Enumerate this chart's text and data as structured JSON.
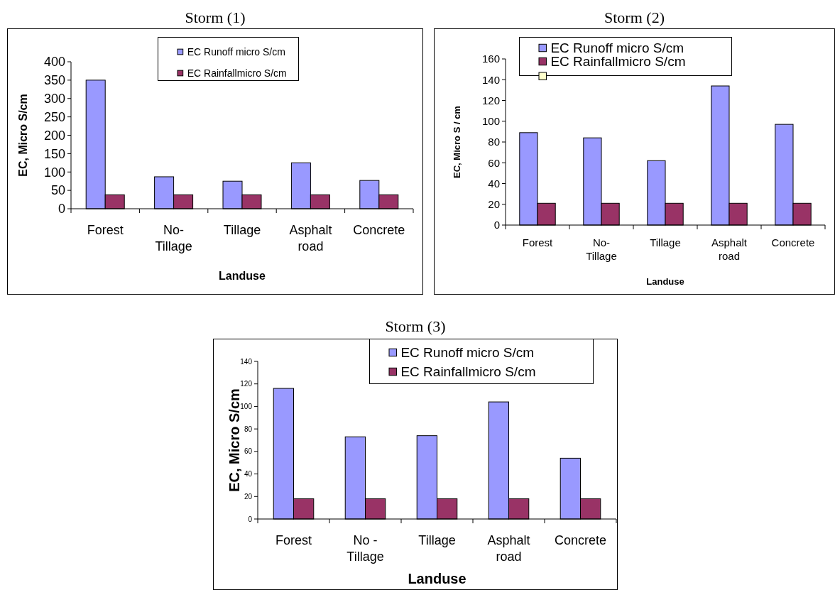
{
  "chart_data": [
    {
      "type": "bar",
      "title": "Storm (1)",
      "xlabel": "Landuse",
      "ylabel": "EC, Micro S/cm",
      "categories": [
        "Forest",
        "No-Tillage",
        "Tillage",
        "Asphalt road",
        "Concrete"
      ],
      "series": [
        {
          "name": "EC Runoff micro S/cm",
          "color": "#9999ff",
          "values": [
            350,
            87,
            75,
            125,
            77
          ]
        },
        {
          "name": "EC Rainfallmicro S/cm",
          "color": "#993366",
          "values": [
            38,
            38,
            38,
            38,
            38
          ]
        }
      ],
      "ylim": [
        0,
        400
      ],
      "yticks": [
        0,
        50,
        100,
        150,
        200,
        250,
        300,
        350,
        400
      ],
      "legend": "top"
    },
    {
      "type": "bar",
      "title": "Storm (2)",
      "xlabel": "Landuse",
      "ylabel": "EC, Micro S / cm",
      "categories": [
        "Forest",
        "No-Tillage",
        "Tillage",
        "Asphalt road",
        "Concrete"
      ],
      "series": [
        {
          "name": "EC Runoff micro S/cm",
          "color": "#9999ff",
          "values": [
            89,
            84,
            62,
            134,
            97
          ]
        },
        {
          "name": "EC Rainfallmicro S/cm",
          "color": "#993366",
          "values": [
            21,
            21,
            21,
            21,
            21
          ]
        }
      ],
      "ylim": [
        0,
        160
      ],
      "yticks": [
        0,
        20,
        40,
        60,
        80,
        100,
        120,
        140,
        160
      ],
      "legend": "top"
    },
    {
      "type": "bar",
      "title": "Storm (3)",
      "xlabel": "Landuse",
      "ylabel": "EC, Micro S/cm",
      "categories": [
        "Forest",
        "No - Tillage",
        "Tillage",
        "Asphalt road",
        "Concrete"
      ],
      "series": [
        {
          "name": "EC Runoff micro S/cm",
          "color": "#9999ff",
          "values": [
            116,
            73,
            74,
            104,
            54
          ]
        },
        {
          "name": "EC Rainfallmicro S/cm",
          "color": "#993366",
          "values": [
            18,
            18,
            18,
            18,
            18
          ]
        }
      ],
      "ylim": [
        0,
        140
      ],
      "yticks": [
        0,
        20,
        40,
        60,
        80,
        100,
        120,
        140
      ],
      "legend": "top right"
    }
  ]
}
